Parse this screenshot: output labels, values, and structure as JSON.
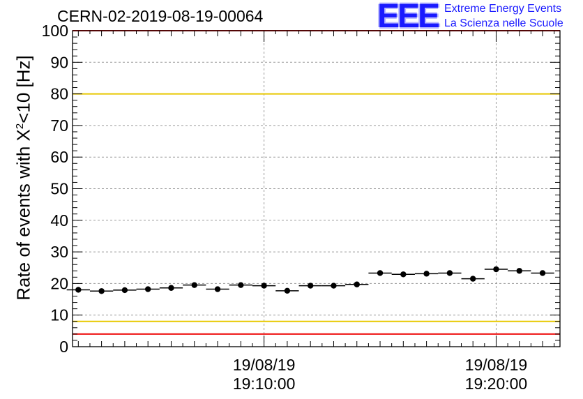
{
  "header": {
    "run_title": "CERN-02-2019-08-19-00064",
    "logo_text": "EEE",
    "logo_line1": "Extreme Energy Events",
    "logo_line2": "La Scienza nelle Scuole"
  },
  "chart_data": {
    "type": "scatter",
    "title": "CERN-02-2019-08-19-00064",
    "xlabel": "",
    "ylabel_pre": "Rate of events with X",
    "ylabel_sup": "2",
    "ylabel_post": "<10 [Hz]",
    "ylim": [
      0,
      100
    ],
    "xlim": [
      0,
      21
    ],
    "y_ticks": [
      0,
      10,
      20,
      30,
      40,
      50,
      60,
      70,
      80,
      90,
      100
    ],
    "x_tick_labels": [
      {
        "x": 8.25,
        "date": "19/08/19",
        "time": "19:10:00"
      },
      {
        "x": 18.25,
        "date": "19/08/19",
        "time": "19:20:00"
      }
    ],
    "grid": true,
    "series": [
      {
        "x": [
          0.25,
          1.25,
          2.25,
          3.25,
          4.25,
          5.25,
          6.25,
          7.25,
          8.25,
          9.25,
          10.25,
          11.25,
          12.25,
          13.25,
          14.25,
          15.25,
          16.25,
          17.25,
          18.25,
          19.25,
          20.25
        ],
        "y": [
          18.0,
          17.6,
          17.9,
          18.2,
          18.6,
          19.5,
          18.2,
          19.5,
          19.3,
          17.7,
          19.3,
          19.3,
          19.7,
          23.3,
          22.9,
          23.1,
          23.3,
          21.5,
          24.5,
          24.0,
          23.3
        ],
        "x_error": 0.5,
        "color": "#000000"
      }
    ],
    "reference_lines": [
      {
        "y": 100,
        "color": "#ee1111"
      },
      {
        "y": 80,
        "color": "#e8c800"
      },
      {
        "y": 8,
        "color": "#e8c800"
      },
      {
        "y": 4,
        "color": "#ee1111"
      }
    ]
  }
}
